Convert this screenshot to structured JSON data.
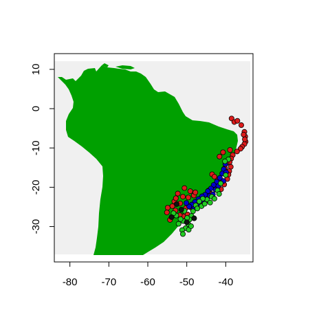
{
  "chart_data": {
    "type": "scatter",
    "title": "",
    "xlabel": "",
    "ylabel": "",
    "xlim": [
      -84,
      -33
    ],
    "ylim": [
      -39,
      14
    ],
    "x_ticks": [
      -80,
      -70,
      -60,
      -50,
      -40
    ],
    "y_ticks": [
      10,
      0,
      -10,
      -20,
      -30
    ],
    "x_tick_labels": [
      "-80",
      "-70",
      "-60",
      "-50",
      "-40"
    ],
    "y_tick_labels": [
      "10",
      "0",
      "-10",
      "-20",
      "-30"
    ],
    "colors": {
      "background": "#f0f0f0",
      "land": "#00a000",
      "point_outline": "#000000"
    },
    "series": [
      {
        "color": "#dd1c1c",
        "points": [
          [
            -38.5,
            -2.5
          ],
          [
            -37.8,
            -3.4
          ],
          [
            -37.0,
            -3.1
          ],
          [
            -36.0,
            -4.2
          ],
          [
            -35.2,
            -5.9
          ],
          [
            -35.0,
            -7.1
          ],
          [
            -34.9,
            -8.4
          ],
          [
            -35.2,
            -9.0
          ],
          [
            -35.8,
            -9.7
          ],
          [
            -36.2,
            -10.2
          ],
          [
            -37.1,
            -10.9
          ],
          [
            -38.2,
            -11.8
          ],
          [
            -38.6,
            -12.7
          ],
          [
            -39.0,
            -13.6
          ],
          [
            -38.7,
            -14.8
          ],
          [
            -39.1,
            -15.9
          ],
          [
            -39.3,
            -16.8
          ],
          [
            -39.6,
            -17.9
          ],
          [
            -40.4,
            -19.3
          ],
          [
            -41.2,
            -20.5
          ],
          [
            -42.6,
            -19.6
          ],
          [
            -42.0,
            -18.2
          ],
          [
            -43.5,
            -16.7
          ],
          [
            -43.9,
            -21.6
          ],
          [
            -45.0,
            -23.3
          ],
          [
            -46.3,
            -23.9
          ],
          [
            -47.3,
            -23.9
          ],
          [
            -48.2,
            -22.1
          ],
          [
            -49.1,
            -21.0
          ],
          [
            -50.6,
            -20.2
          ],
          [
            -51.0,
            -22.4
          ],
          [
            -52.3,
            -21.6
          ],
          [
            -53.2,
            -23.6
          ],
          [
            -53.7,
            -24.8
          ],
          [
            -54.9,
            -25.2
          ],
          [
            -55.1,
            -26.4
          ],
          [
            -54.3,
            -28.3
          ],
          [
            -52.9,
            -25.9
          ],
          [
            -51.7,
            -24.1
          ],
          [
            -50.2,
            -25.3
          ],
          [
            -49.6,
            -22.6
          ],
          [
            -48.9,
            -25.2
          ],
          [
            -49.8,
            -26.9
          ],
          [
            -50.9,
            -27.4
          ],
          [
            -51.8,
            -27.1
          ],
          [
            -40.2,
            -15.1
          ],
          [
            -39.8,
            -13.9
          ],
          [
            -41.6,
            -12.2
          ],
          [
            -40.7,
            -11.1
          ],
          [
            -38.9,
            -10.5
          ],
          [
            -35.4,
            -6.6
          ],
          [
            -35.1,
            -7.8
          ],
          [
            -42.9,
            -17.3
          ],
          [
            -44.4,
            -20.8
          ],
          [
            -47.8,
            -21.3
          ],
          [
            -52.8,
            -22.8
          ]
        ]
      },
      {
        "color": "#0000cc",
        "points": [
          [
            -40.1,
            -14.1
          ],
          [
            -40.5,
            -15.4
          ],
          [
            -40.9,
            -16.5
          ],
          [
            -41.5,
            -17.6
          ],
          [
            -42.3,
            -18.6
          ],
          [
            -43.1,
            -19.4
          ],
          [
            -43.8,
            -20.3
          ],
          [
            -44.6,
            -21.0
          ],
          [
            -45.3,
            -21.9
          ],
          [
            -46.1,
            -22.3
          ],
          [
            -47.0,
            -23.0
          ],
          [
            -47.9,
            -23.7
          ],
          [
            -48.7,
            -24.4
          ],
          [
            -49.4,
            -24.9
          ],
          [
            -50.1,
            -24.0
          ],
          [
            -41.9,
            -19.7
          ],
          [
            -43.3,
            -21.8
          ],
          [
            -45.8,
            -23.4
          ],
          [
            -39.9,
            -16.2
          ],
          [
            -40.6,
            -18.4
          ],
          [
            -42.6,
            -20.6
          ],
          [
            -44.1,
            -22.2
          ],
          [
            -46.7,
            -24.5
          ],
          [
            -48.3,
            -25.6
          ]
        ]
      },
      {
        "color": "#22cc22",
        "points": [
          [
            -39.3,
            -12.9
          ],
          [
            -40.2,
            -13.4
          ],
          [
            -40.0,
            -16.9
          ],
          [
            -41.3,
            -19.0
          ],
          [
            -42.1,
            -20.8
          ],
          [
            -43.6,
            -22.4
          ],
          [
            -44.8,
            -23.1
          ],
          [
            -45.9,
            -22.9
          ],
          [
            -46.8,
            -23.6
          ],
          [
            -47.7,
            -24.6
          ],
          [
            -48.4,
            -26.1
          ],
          [
            -48.8,
            -27.3
          ],
          [
            -49.3,
            -28.2
          ],
          [
            -49.6,
            -29.4
          ],
          [
            -50.3,
            -30.4
          ],
          [
            -51.2,
            -30.9
          ],
          [
            -52.1,
            -29.3
          ],
          [
            -50.9,
            -28.6
          ],
          [
            -49.9,
            -27.8
          ],
          [
            -51.6,
            -28.1
          ],
          [
            -52.7,
            -27.2
          ],
          [
            -53.4,
            -26.6
          ],
          [
            -50.6,
            -26.0
          ],
          [
            -49.5,
            -30.8
          ],
          [
            -51.0,
            -31.9
          ],
          [
            -48.9,
            -29.9
          ],
          [
            -47.3,
            -25.4
          ],
          [
            -46.2,
            -24.8
          ],
          [
            -45.4,
            -24.2
          ],
          [
            -44.0,
            -23.9
          ],
          [
            -42.9,
            -22.9
          ],
          [
            -41.7,
            -21.7
          ]
        ]
      },
      {
        "color": "#111111",
        "points": [
          [
            -52.6,
            -24.3
          ],
          [
            -51.4,
            -25.7
          ],
          [
            -50.0,
            -28.9
          ],
          [
            -48.1,
            -27.9
          ],
          [
            -53.9,
            -27.6
          ]
        ]
      }
    ]
  }
}
